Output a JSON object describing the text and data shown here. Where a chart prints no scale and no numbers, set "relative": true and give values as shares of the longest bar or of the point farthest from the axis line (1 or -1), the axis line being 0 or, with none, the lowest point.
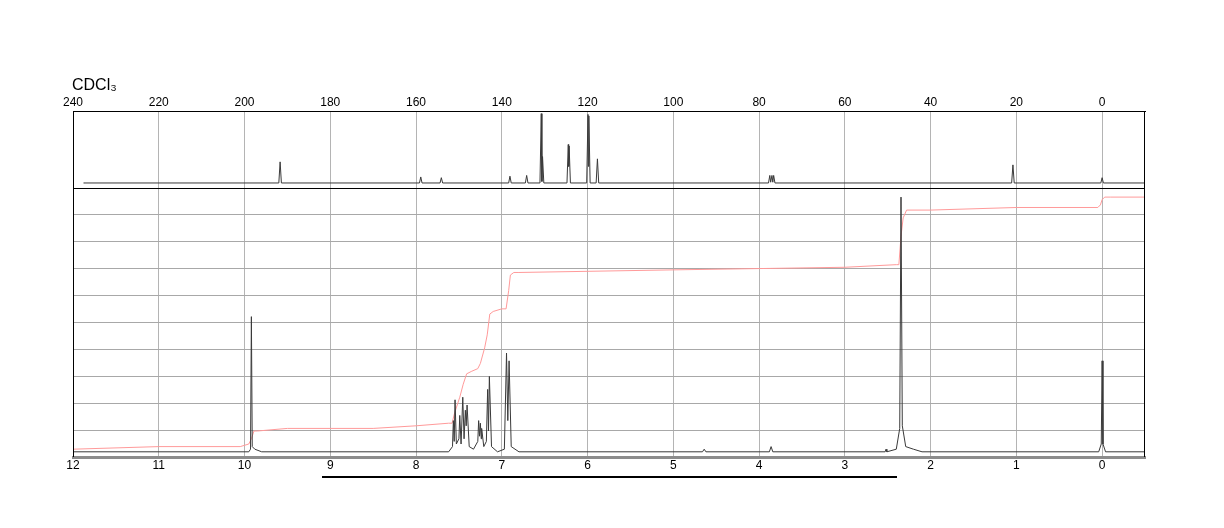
{
  "chart_data": [
    {
      "type": "line",
      "title": "CDCl₃",
      "relative": true,
      "xlim": [
        240,
        -10
      ],
      "xticks": [
        240,
        220,
        200,
        180,
        160,
        140,
        120,
        100,
        80,
        60,
        40,
        20,
        0
      ],
      "grid": "x",
      "series": [
        {
          "color": "#3a3a3a",
          "x": [
            237.5,
            192.0,
            191.7,
            191.4,
            159.2,
            158.9,
            158.6,
            154.4,
            154.1,
            153.8,
            138.4,
            138.1,
            137.8,
            134.5,
            134.2,
            133.9,
            131.1,
            130.8,
            130.65,
            130.5,
            130.2,
            124.8,
            124.5,
            124.4,
            124.3,
            124.0,
            120.2,
            119.9,
            119.8,
            119.7,
            119.4,
            118.0,
            117.7,
            117.4,
            77.8,
            77.5,
            77.3,
            77.0,
            76.8,
            76.6,
            76.3,
            21.1,
            20.8,
            20.5,
            0.3,
            0,
            -0.3,
            -10
          ],
          "values": [
            0.08,
            0.08,
            0.36,
            0.08,
            0.08,
            0.16,
            0.08,
            0.08,
            0.15,
            0.08,
            0.08,
            0.17,
            0.08,
            0.08,
            0.18,
            0.08,
            0.08,
            1.0,
            0.1,
            0.43,
            0.08,
            0.08,
            0.59,
            0.3,
            0.57,
            0.08,
            0.08,
            0.99,
            0.3,
            0.97,
            0.08,
            0.08,
            0.4,
            0.08,
            0.08,
            0.18,
            0.09,
            0.18,
            0.09,
            0.18,
            0.08,
            0.08,
            0.32,
            0.08,
            0.08,
            0.15,
            0.08,
            0.08
          ]
        }
      ]
    },
    {
      "type": "line",
      "relative": true,
      "xlim": [
        12,
        -0.5
      ],
      "xticks": [
        12,
        11,
        10,
        9,
        8,
        7,
        6,
        5,
        4,
        3,
        2,
        1,
        0
      ],
      "grid": true,
      "series": [
        {
          "color": "#3a3a3a",
          "x": [
            12,
            9.95,
            9.93,
            9.92,
            9.91,
            9.88,
            9.8,
            7.62,
            7.575,
            7.565,
            7.555,
            7.545,
            7.53,
            7.5,
            7.49,
            7.475,
            7.455,
            7.44,
            7.425,
            7.415,
            7.405,
            7.38,
            7.33,
            7.28,
            7.27,
            7.26,
            7.25,
            7.24,
            7.235,
            7.21,
            7.18,
            7.165,
            7.155,
            7.145,
            7.12,
            7.05,
            6.97,
            6.945,
            6.93,
            6.915,
            6.89,
            6.8,
            4.66,
            4.64,
            4.62,
            3.88,
            3.86,
            3.84,
            2.53,
            2.52,
            2.51,
            2.4,
            2.36,
            2.345,
            2.33,
            2.29,
            2.2,
            2.1,
            0.04,
            0.01,
            0,
            -0.01,
            -0.04,
            -0.5
          ],
          "values": [
            0.02,
            0.02,
            0.03,
            0.54,
            0.04,
            0.03,
            0.02,
            0.02,
            0.04,
            0.14,
            0.06,
            0.22,
            0.05,
            0.07,
            0.16,
            0.05,
            0.23,
            0.07,
            0.18,
            0.12,
            0.2,
            0.04,
            0.03,
            0.06,
            0.14,
            0.08,
            0.13,
            0.07,
            0.11,
            0.04,
            0.06,
            0.26,
            0.1,
            0.31,
            0.04,
            0.02,
            0.03,
            0.4,
            0.14,
            0.37,
            0.04,
            0.02,
            0.02,
            0.03,
            0.02,
            0.02,
            0.04,
            0.02,
            0.02,
            0.03,
            0.02,
            0.03,
            0.11,
            1.0,
            0.12,
            0.04,
            0.03,
            0.02,
            0.02,
            0.05,
            0.37,
            0.05,
            0.02,
            0.02
          ]
        },
        {
          "color": "#ff9a9a",
          "x": [
            12,
            11,
            10.05,
            9.95,
            9.92,
            9.89,
            9.85,
            9.5,
            8.5,
            8.0,
            7.62,
            7.58,
            7.55,
            7.52,
            7.49,
            7.45,
            7.41,
            7.35,
            7.28,
            7.25,
            7.2,
            7.17,
            7.14,
            7.1,
            7.0,
            6.95,
            6.92,
            6.9,
            6.86,
            6.8,
            5.0,
            3.0,
            2.4,
            2.37,
            2.345,
            2.32,
            2.28,
            2.0,
            1.0,
            0.05,
            0.02,
            0,
            -0.03,
            -0.1,
            -0.5
          ],
          "values": [
            0.03,
            0.04,
            0.04,
            0.05,
            0.07,
            0.1,
            0.1,
            0.11,
            0.11,
            0.12,
            0.13,
            0.13,
            0.17,
            0.2,
            0.23,
            0.28,
            0.32,
            0.33,
            0.34,
            0.36,
            0.42,
            0.47,
            0.55,
            0.56,
            0.57,
            0.57,
            0.64,
            0.7,
            0.71,
            0.71,
            0.72,
            0.73,
            0.74,
            0.74,
            0.85,
            0.92,
            0.95,
            0.95,
            0.96,
            0.96,
            0.97,
            0.99,
            1.0,
            1.0,
            1.0
          ]
        }
      ]
    }
  ]
}
